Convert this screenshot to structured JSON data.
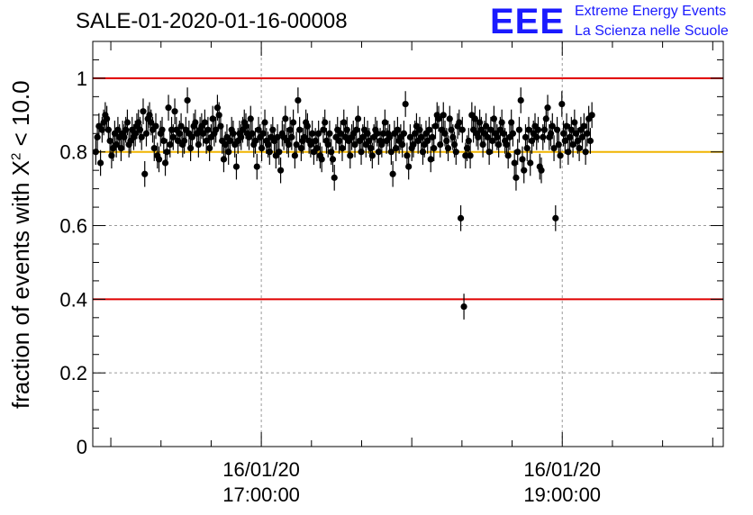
{
  "header": {
    "run_id": "SALE-01-2020-01-16-00008",
    "logo_mark": "EEE",
    "logo_line1": "Extreme Energy Events",
    "logo_line2": "La Scienza nelle Scuole"
  },
  "colors": {
    "threshold_red": "#e00000",
    "reference_yellow": "#f0b400",
    "logo_blue": "#1a1aff",
    "points": "#000000"
  },
  "chart_data": {
    "type": "scatter",
    "title": "SALE-01-2020-01-16-00008",
    "ylabel": "fraction of events with X",
    "ylabel_superscript": "2",
    "ylabel_suffix": " < 10.0",
    "xlabel": "",
    "ylim": [
      0,
      1.1
    ],
    "xlim_hours": [
      15.88,
      20.07
    ],
    "x_unit": "hours (time of day, 16/01/20)",
    "grid": true,
    "yticks": [
      {
        "value": 0,
        "label": "0"
      },
      {
        "value": 0.2,
        "label": "0.2"
      },
      {
        "value": 0.4,
        "label": "0.4"
      },
      {
        "value": 0.6,
        "label": "0.6"
      },
      {
        "value": 0.8,
        "label": "0.8"
      },
      {
        "value": 1,
        "label": "1"
      }
    ],
    "xticks": [
      {
        "value": 17.0,
        "line1": "16/01/20",
        "line2": "17:00:00"
      },
      {
        "value": 19.0,
        "line1": "16/01/20",
        "line2": "19:00:00"
      }
    ],
    "reference_lines": [
      {
        "y": 1.0,
        "color": "#e00000"
      },
      {
        "y": 0.8,
        "color": "#f0b400"
      },
      {
        "y": 0.4,
        "color": "#e00000"
      }
    ],
    "error": 0.035,
    "x_start": 15.9,
    "x_step": 0.0105,
    "y": [
      0.8,
      0.84,
      0.87,
      0.77,
      0.86,
      0.88,
      0.9,
      0.89,
      0.86,
      0.83,
      0.79,
      0.81,
      0.85,
      0.82,
      0.86,
      0.84,
      0.81,
      0.85,
      0.84,
      0.86,
      0.88,
      0.82,
      0.83,
      0.86,
      0.84,
      0.85,
      0.87,
      0.88,
      0.86,
      0.84,
      0.91,
      0.74,
      0.85,
      0.89,
      0.9,
      0.88,
      0.86,
      0.81,
      0.87,
      0.79,
      0.78,
      0.85,
      0.86,
      0.83,
      0.77,
      0.8,
      0.92,
      0.82,
      0.86,
      0.84,
      0.91,
      0.86,
      0.83,
      0.85,
      0.87,
      0.82,
      0.83,
      0.86,
      0.94,
      0.85,
      0.81,
      0.84,
      0.87,
      0.88,
      0.85,
      0.82,
      0.86,
      0.87,
      0.85,
      0.88,
      0.83,
      0.86,
      0.81,
      0.84,
      0.89,
      0.85,
      0.86,
      0.92,
      0.9,
      0.87,
      0.83,
      0.78,
      0.82,
      0.84,
      0.8,
      0.83,
      0.86,
      0.85,
      0.82,
      0.76,
      0.83,
      0.85,
      0.84,
      0.86,
      0.88,
      0.87,
      0.85,
      0.84,
      0.89,
      0.85,
      0.82,
      0.83,
      0.76,
      0.86,
      0.84,
      0.81,
      0.85,
      0.88,
      0.83,
      0.82,
      0.8,
      0.84,
      0.86,
      0.83,
      0.79,
      0.84,
      0.8,
      0.75,
      0.85,
      0.84,
      0.89,
      0.83,
      0.82,
      0.86,
      0.84,
      0.88,
      0.79,
      0.82,
      0.94,
      0.86,
      0.81,
      0.83,
      0.84,
      0.88,
      0.87,
      0.83,
      0.82,
      0.85,
      0.8,
      0.83,
      0.81,
      0.85,
      0.79,
      0.78,
      0.86,
      0.88,
      0.83,
      0.82,
      0.85,
      0.8,
      0.78,
      0.73,
      0.84,
      0.86,
      0.83,
      0.85,
      0.81,
      0.88,
      0.84,
      0.86,
      0.83,
      0.79,
      0.84,
      0.85,
      0.82,
      0.86,
      0.89,
      0.83,
      0.8,
      0.84,
      0.86,
      0.82,
      0.85,
      0.83,
      0.81,
      0.79,
      0.84,
      0.86,
      0.85,
      0.8,
      0.83,
      0.82,
      0.85,
      0.88,
      0.83,
      0.85,
      0.84,
      0.8,
      0.74,
      0.85,
      0.81,
      0.86,
      0.83,
      0.84,
      0.82,
      0.85,
      0.93,
      0.79,
      0.76,
      0.84,
      0.81,
      0.82,
      0.85,
      0.87,
      0.83,
      0.86,
      0.84,
      0.8,
      0.82,
      0.85,
      0.83,
      0.86,
      0.78,
      0.84,
      0.81,
      0.87,
      0.9,
      0.89,
      0.82,
      0.86,
      0.9,
      0.85,
      0.83,
      0.81,
      0.89,
      0.86,
      0.84,
      0.82,
      0.8,
      0.87,
      0.88,
      0.62,
      0.86,
      0.38,
      0.79,
      0.81,
      0.83,
      0.79,
      0.9,
      0.86,
      0.89,
      0.85,
      0.84,
      0.88,
      0.86,
      0.82,
      0.85,
      0.87,
      0.84,
      0.8,
      0.86,
      0.83,
      0.89,
      0.85,
      0.84,
      0.82,
      0.86,
      0.88,
      0.85,
      0.83,
      0.82,
      0.79,
      0.84,
      0.88,
      0.85,
      0.77,
      0.73,
      0.8,
      0.86,
      0.94,
      0.78,
      0.75,
      0.84,
      0.81,
      0.86,
      0.77,
      0.83,
      0.85,
      0.87,
      0.84,
      0.86,
      0.76,
      0.75,
      0.84,
      0.86,
      0.89,
      0.92,
      0.84,
      0.85,
      0.87,
      0.81,
      0.62,
      0.86,
      0.82,
      0.79,
      0.93,
      0.85,
      0.83,
      0.87,
      0.8,
      0.84,
      0.86,
      0.82,
      0.88,
      0.85,
      0.83,
      0.81,
      0.86,
      0.84,
      0.87,
      0.8,
      0.85,
      0.89,
      0.83,
      0.9
    ]
  }
}
